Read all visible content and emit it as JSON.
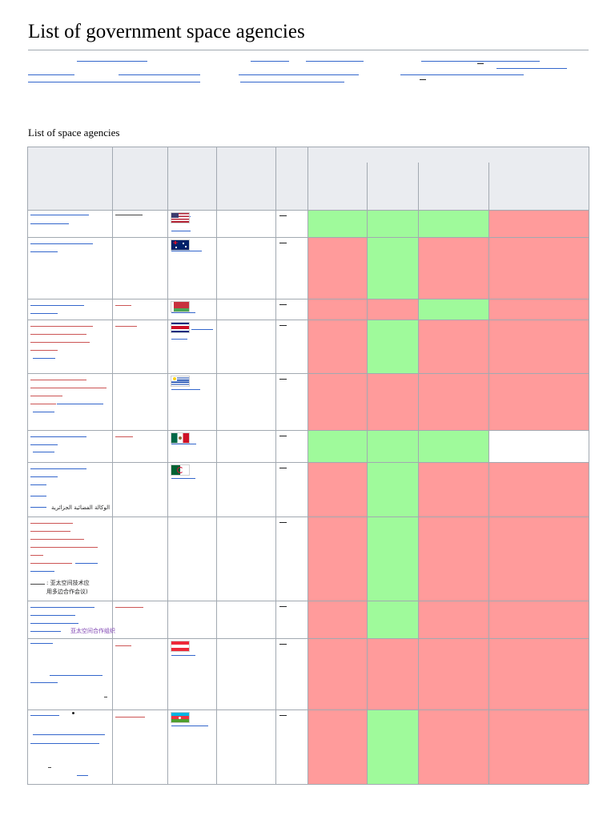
{
  "page": {
    "title": "List of government space agencies"
  },
  "table": {
    "caption": "List of space agencies",
    "status_colors": {
      "yes": "#9ffa9b",
      "no": "#ff9b9b",
      "header": "#eaecf0"
    },
    "rows": [
      {
        "flag": "flag-usa",
        "status": [
          true,
          true,
          true,
          false
        ]
      },
      {
        "flag": "flag-australia",
        "status": [
          false,
          true,
          false,
          false
        ]
      },
      {
        "flag": "flag-belarus",
        "status": [
          false,
          false,
          true,
          false
        ]
      },
      {
        "flag": "flag-costa-rica",
        "status": [
          false,
          true,
          false,
          false
        ]
      },
      {
        "flag": "flag-uruguay",
        "status": [
          false,
          false,
          false,
          false
        ]
      },
      {
        "flag": "flag-mexico",
        "status": [
          true,
          true,
          true,
          null
        ]
      },
      {
        "flag": "flag-algeria",
        "status": [
          false,
          true,
          false,
          false
        ],
        "native_name": "الوكالة الفضائية الجزائرية"
      },
      {
        "flag": "",
        "status": [
          false,
          true,
          false,
          false
        ],
        "native_name": ": 亚太空间技术应\n用多边合作会议)"
      },
      {
        "flag": "",
        "status": [
          false,
          true,
          false,
          false
        ],
        "native_name": "亚太空间合作组织"
      },
      {
        "flag": "flag-austria",
        "status": [
          false,
          false,
          false,
          false
        ]
      },
      {
        "flag": "flag-azerbaijan",
        "status": [
          false,
          true,
          false,
          false
        ]
      }
    ]
  }
}
